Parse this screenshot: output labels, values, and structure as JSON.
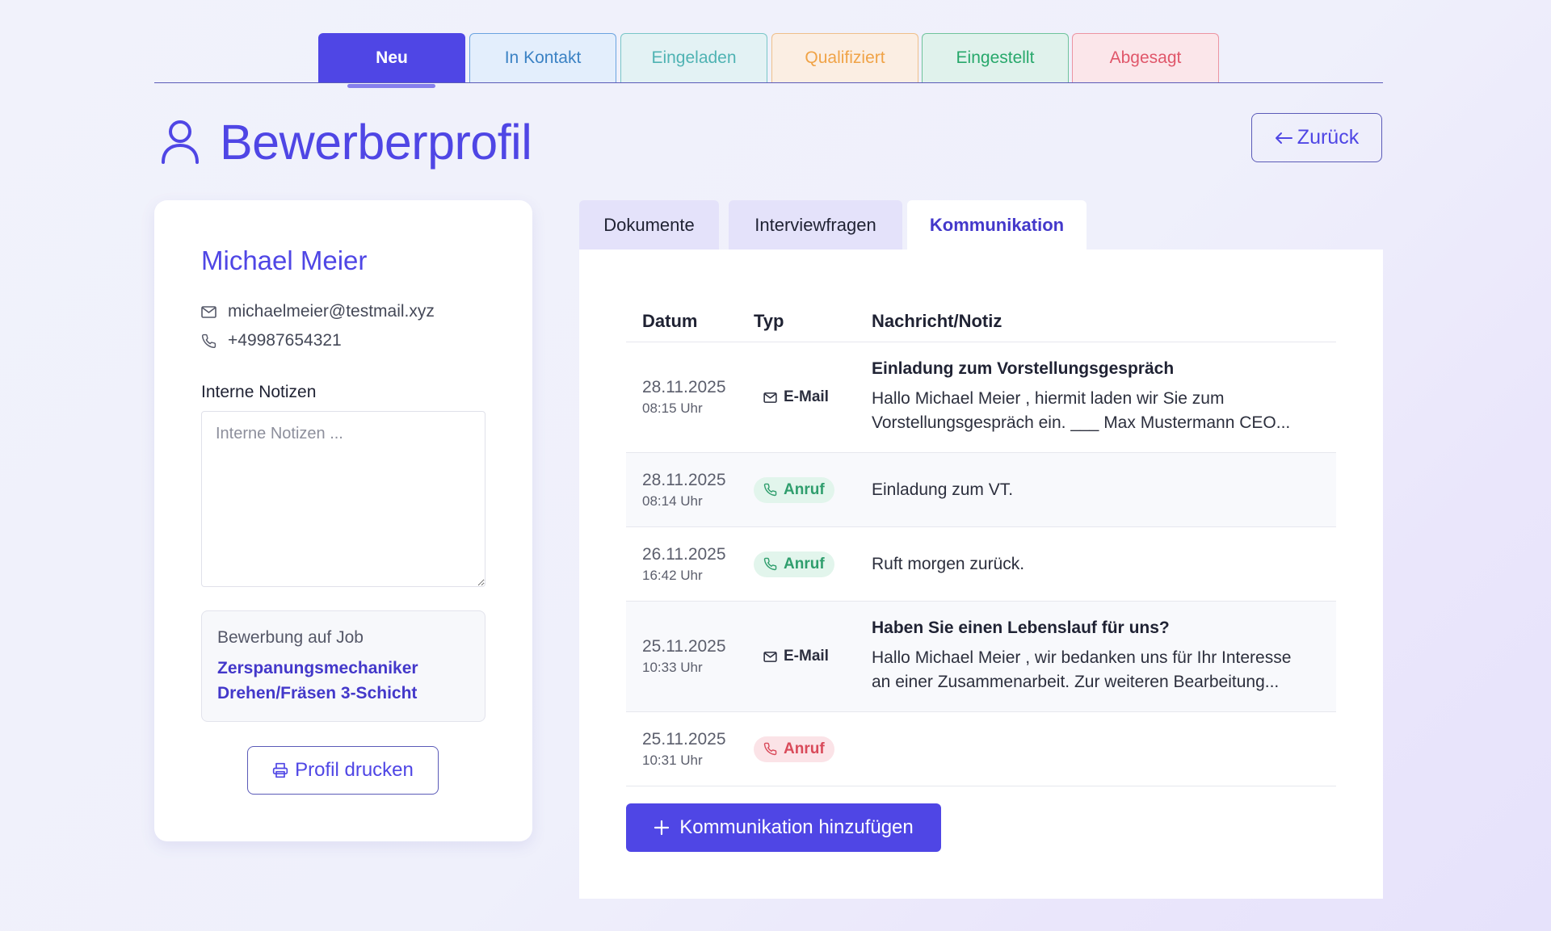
{
  "status_tabs": [
    {
      "label": "Neu",
      "text_color": "#ffffff",
      "bg": "#4f46e5",
      "border": "#4f46e5"
    },
    {
      "label": "In Kontakt",
      "text_color": "#3b82c4",
      "bg": "#e3eefc",
      "border": "#6aa3e0"
    },
    {
      "label": "Eingeladen",
      "text_color": "#4fb3b3",
      "bg": "#e3f2f4",
      "border": "#79c6c8"
    },
    {
      "label": "Qualifiziert",
      "text_color": "#f0a347",
      "bg": "#fbeee3",
      "border": "#efbf8a"
    },
    {
      "label": "Eingestellt",
      "text_color": "#27a86b",
      "bg": "#e0f2ec",
      "border": "#6fc39c"
    },
    {
      "label": "Abgesagt",
      "text_color": "#e0566a",
      "bg": "#fbe6ea",
      "border": "#ec94a2"
    }
  ],
  "header": {
    "title": "Bewerberprofil",
    "back_label": "Zurück"
  },
  "candidate": {
    "name": "Michael Meier",
    "email": "michaelmeier@testmail.xyz",
    "phone": "+49987654321",
    "notes_label": "Interne Notizen",
    "notes_placeholder": "Interne Notizen ...",
    "job_label": "Bewerbung auf Job",
    "job_title_line1": "Zerspanungsmechaniker",
    "job_title_line2": "Drehen/Fräsen 3-Schicht",
    "print_label": "Profil drucken"
  },
  "detail_tabs": [
    {
      "label": "Dokumente"
    },
    {
      "label": "Interviewfragen"
    },
    {
      "label": "Kommunikation"
    }
  ],
  "table": {
    "headers": {
      "date": "Datum",
      "type": "Typ",
      "message": "Nachricht/Notiz"
    },
    "rows": [
      {
        "date": "28.11.2025",
        "time": "08:15 Uhr",
        "type": "E-Mail",
        "subject": "Einladung zum Vorstellungsgespräch",
        "body_line1": "Hallo Michael Meier , hiermit laden wir Sie zum",
        "body_line2": "Vorstellungsgespräch ein. ___ Max Mustermann CEO..."
      },
      {
        "date": "28.11.2025",
        "time": "08:14 Uhr",
        "type": "Anruf",
        "subject": "",
        "body_line1": "Einladung zum VT.",
        "body_line2": ""
      },
      {
        "date": "26.11.2025",
        "time": "16:42 Uhr",
        "type": "Anruf",
        "subject": "",
        "body_line1": "Ruft morgen zurück.",
        "body_line2": ""
      },
      {
        "date": "25.11.2025",
        "time": "10:33 Uhr",
        "type": "E-Mail",
        "subject": "Haben Sie einen Lebenslauf für uns?",
        "body_line1": "Hallo Michael Meier , wir bedanken uns für Ihr Interesse",
        "body_line2": "an einer Zusammenarbeit. Zur weiteren Bearbeitung..."
      },
      {
        "date": "25.11.2025",
        "time": "10:31 Uhr",
        "type": "Anruf",
        "subject": "",
        "body_line1": "",
        "body_line2": ""
      }
    ]
  },
  "add_button_label": "Kommunikation hinzufügen",
  "colors": {
    "accent": "#4f46e5",
    "call_green": "#2f9e6d",
    "call_red": "#d94a5a"
  },
  "icons": [
    "user-icon",
    "arrow-left-icon",
    "mail-icon",
    "phone-icon",
    "printer-icon",
    "plus-icon"
  ]
}
